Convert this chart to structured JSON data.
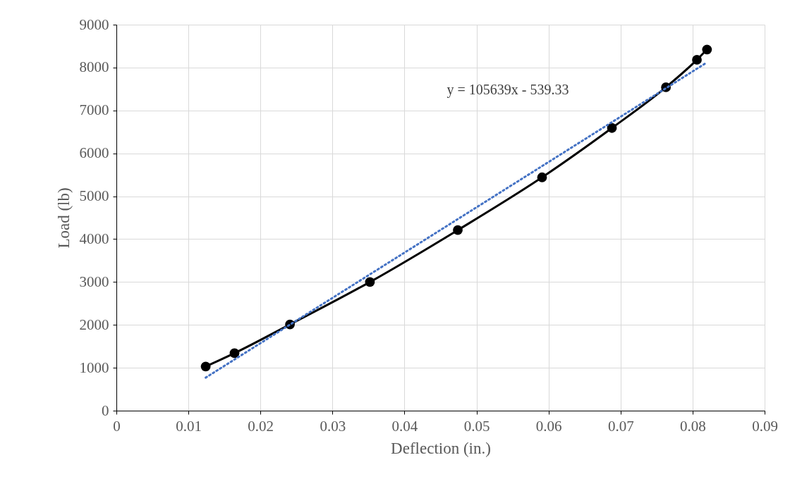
{
  "chart_data": {
    "type": "line",
    "xlabel": "Deflection (in.)",
    "ylabel": "Load (lb)",
    "series": [
      {
        "color": "#000000",
        "marker": "circle",
        "line_style": "solid",
        "x": [
          0.0124,
          0.0164,
          0.0241,
          0.0352,
          0.0474,
          0.0591,
          0.0688,
          0.0763,
          0.0806,
          0.082
        ],
        "values": [
          1030,
          1340,
          2010,
          3000,
          4210,
          5440,
          6590,
          7540,
          8180,
          8420
        ]
      },
      {
        "color": "#4472c4",
        "marker": "none",
        "line_style": "dotted",
        "x": [
          0.0124,
          0.082
        ],
        "values": [
          770,
          8120
        ]
      }
    ],
    "annotations": [
      "y = 105639x - 539.33"
    ],
    "xlim": [
      0,
      0.09
    ],
    "xticks": [
      0,
      0.01,
      0.02,
      0.03,
      0.04,
      0.05,
      0.06,
      0.07,
      0.08,
      0.09
    ],
    "ylim": [
      0,
      9000
    ],
    "yticks": [
      0,
      1000,
      2000,
      3000,
      4000,
      5000,
      6000,
      7000,
      8000,
      9000
    ],
    "grid": true
  }
}
